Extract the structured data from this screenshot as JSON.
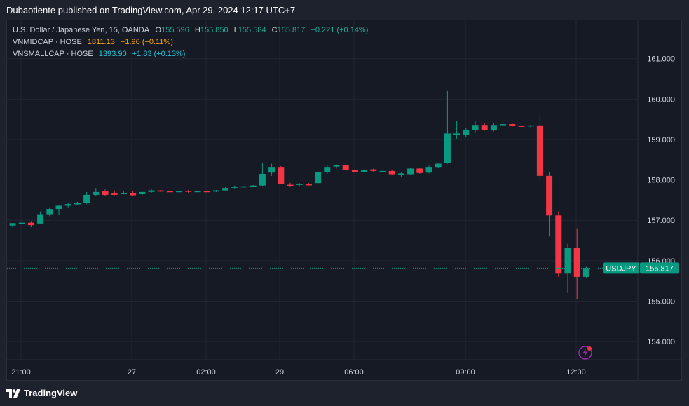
{
  "header": {
    "text": "Dubaotiente published on TradingView.com, Apr 29, 2024 12:17 UTC+7"
  },
  "legend": {
    "main": {
      "title": "U.S. Dollar / Japanese Yen, 15, OANDA",
      "o_label": "O",
      "o": "155.596",
      "h_label": "H",
      "h": "155.850",
      "l_label": "L",
      "l": "155.584",
      "c_label": "C",
      "c": "155.817",
      "change": "+0.221 (+0.14%)"
    },
    "vnmidcap": {
      "name": "VNMIDCAP · HOSE",
      "value": "1811.13",
      "change": "−1.96 (−0.11%)"
    },
    "vnsmallcap": {
      "name": "VNSMALLCAP · HOSE",
      "value": "1393.90",
      "change": "+1.83 (+0.13%)"
    }
  },
  "colors": {
    "up": "#089981",
    "down": "#f23645",
    "orange": "#f7a600",
    "cyan": "#22ab94",
    "bg": "#161a25"
  },
  "price_label": {
    "symbol": "USDJPY",
    "value": "155.817"
  },
  "footer": {
    "brand": "TradingView"
  },
  "chart_data": {
    "type": "candlestick",
    "y_axis": {
      "ticks": [
        "154.000",
        "155.000",
        "156.000",
        "157.000",
        "158.000",
        "159.000",
        "160.000",
        "161.000"
      ],
      "range": [
        153.55,
        161.95
      ]
    },
    "x_axis": {
      "ticks": [
        "21:00",
        "27",
        "02:00",
        "29",
        "06:00",
        "09:00",
        "12:00"
      ]
    },
    "last_price": 155.817,
    "candles": [
      {
        "o": 156.87,
        "h": 156.93,
        "l": 156.83,
        "c": 156.93
      },
      {
        "o": 156.93,
        "h": 156.96,
        "l": 156.9,
        "c": 156.94
      },
      {
        "o": 156.94,
        "h": 156.98,
        "l": 156.83,
        "c": 156.88
      },
      {
        "o": 156.92,
        "h": 157.22,
        "l": 156.9,
        "c": 157.15
      },
      {
        "o": 157.15,
        "h": 157.32,
        "l": 157.1,
        "c": 157.28
      },
      {
        "o": 157.28,
        "h": 157.38,
        "l": 157.14,
        "c": 157.36
      },
      {
        "o": 157.36,
        "h": 157.44,
        "l": 157.32,
        "c": 157.4
      },
      {
        "o": 157.4,
        "h": 157.46,
        "l": 157.37,
        "c": 157.42
      },
      {
        "o": 157.42,
        "h": 157.7,
        "l": 157.4,
        "c": 157.63
      },
      {
        "o": 157.63,
        "h": 157.8,
        "l": 157.6,
        "c": 157.7
      },
      {
        "o": 157.72,
        "h": 157.76,
        "l": 157.6,
        "c": 157.63
      },
      {
        "o": 157.68,
        "h": 157.74,
        "l": 157.62,
        "c": 157.63
      },
      {
        "o": 157.67,
        "h": 157.72,
        "l": 157.64,
        "c": 157.68
      },
      {
        "o": 157.68,
        "h": 157.73,
        "l": 157.6,
        "c": 157.62
      },
      {
        "o": 157.65,
        "h": 157.72,
        "l": 157.62,
        "c": 157.7
      },
      {
        "o": 157.7,
        "h": 157.77,
        "l": 157.68,
        "c": 157.74
      },
      {
        "o": 157.74,
        "h": 157.75,
        "l": 157.7,
        "c": 157.71
      },
      {
        "o": 157.72,
        "h": 157.75,
        "l": 157.68,
        "c": 157.7
      },
      {
        "o": 157.72,
        "h": 157.76,
        "l": 157.7,
        "c": 157.72
      },
      {
        "o": 157.73,
        "h": 157.75,
        "l": 157.68,
        "c": 157.71
      },
      {
        "o": 157.71,
        "h": 157.74,
        "l": 157.7,
        "c": 157.72
      },
      {
        "o": 157.72,
        "h": 157.73,
        "l": 157.69,
        "c": 157.7
      },
      {
        "o": 157.71,
        "h": 157.75,
        "l": 157.7,
        "c": 157.74
      },
      {
        "o": 157.74,
        "h": 157.82,
        "l": 157.72,
        "c": 157.8
      },
      {
        "o": 157.81,
        "h": 157.86,
        "l": 157.79,
        "c": 157.83
      },
      {
        "o": 157.83,
        "h": 157.85,
        "l": 157.82,
        "c": 157.84
      },
      {
        "o": 157.84,
        "h": 157.87,
        "l": 157.83,
        "c": 157.86
      },
      {
        "o": 157.86,
        "h": 158.42,
        "l": 157.85,
        "c": 158.15
      },
      {
        "o": 158.18,
        "h": 158.4,
        "l": 158.1,
        "c": 158.32
      },
      {
        "o": 158.32,
        "h": 158.34,
        "l": 157.9,
        "c": 157.9
      },
      {
        "o": 157.88,
        "h": 157.93,
        "l": 157.84,
        "c": 157.86
      },
      {
        "o": 157.88,
        "h": 157.92,
        "l": 157.85,
        "c": 157.9
      },
      {
        "o": 157.89,
        "h": 157.92,
        "l": 157.86,
        "c": 157.88
      },
      {
        "o": 157.92,
        "h": 158.22,
        "l": 157.9,
        "c": 158.2
      },
      {
        "o": 158.2,
        "h": 158.38,
        "l": 158.15,
        "c": 158.32
      },
      {
        "o": 158.33,
        "h": 158.38,
        "l": 158.28,
        "c": 158.36
      },
      {
        "o": 158.36,
        "h": 158.38,
        "l": 158.24,
        "c": 158.25
      },
      {
        "o": 158.25,
        "h": 158.3,
        "l": 158.18,
        "c": 158.2
      },
      {
        "o": 158.2,
        "h": 158.28,
        "l": 158.18,
        "c": 158.24
      },
      {
        "o": 158.26,
        "h": 158.28,
        "l": 158.2,
        "c": 158.22
      },
      {
        "o": 158.22,
        "h": 158.25,
        "l": 158.2,
        "c": 158.22
      },
      {
        "o": 158.22,
        "h": 158.24,
        "l": 158.12,
        "c": 158.14
      },
      {
        "o": 158.12,
        "h": 158.18,
        "l": 158.08,
        "c": 158.16
      },
      {
        "o": 158.14,
        "h": 158.3,
        "l": 158.12,
        "c": 158.28
      },
      {
        "o": 158.28,
        "h": 158.3,
        "l": 158.15,
        "c": 158.17
      },
      {
        "o": 158.18,
        "h": 158.35,
        "l": 158.16,
        "c": 158.32
      },
      {
        "o": 158.32,
        "h": 158.42,
        "l": 158.3,
        "c": 158.4
      },
      {
        "o": 158.42,
        "h": 160.2,
        "l": 158.4,
        "c": 159.15
      },
      {
        "o": 159.12,
        "h": 159.46,
        "l": 159.02,
        "c": 159.15
      },
      {
        "o": 159.12,
        "h": 159.28,
        "l": 159.06,
        "c": 159.24
      },
      {
        "o": 159.24,
        "h": 159.45,
        "l": 159.18,
        "c": 159.36
      },
      {
        "o": 159.36,
        "h": 159.4,
        "l": 159.22,
        "c": 159.24
      },
      {
        "o": 159.24,
        "h": 159.4,
        "l": 159.2,
        "c": 159.36
      },
      {
        "o": 159.36,
        "h": 159.44,
        "l": 159.34,
        "c": 159.38
      },
      {
        "o": 159.38,
        "h": 159.4,
        "l": 159.32,
        "c": 159.33
      },
      {
        "o": 159.34,
        "h": 159.36,
        "l": 159.32,
        "c": 159.33
      },
      {
        "o": 159.33,
        "h": 159.36,
        "l": 159.3,
        "c": 159.35
      },
      {
        "o": 159.35,
        "h": 159.62,
        "l": 157.98,
        "c": 158.1
      },
      {
        "o": 158.1,
        "h": 158.2,
        "l": 156.6,
        "c": 157.12
      },
      {
        "o": 157.12,
        "h": 157.22,
        "l": 155.6,
        "c": 155.68
      },
      {
        "o": 155.68,
        "h": 156.42,
        "l": 155.2,
        "c": 156.32
      },
      {
        "o": 156.32,
        "h": 156.8,
        "l": 155.05,
        "c": 155.6
      },
      {
        "o": 155.6,
        "h": 155.85,
        "l": 155.58,
        "c": 155.82
      }
    ]
  }
}
